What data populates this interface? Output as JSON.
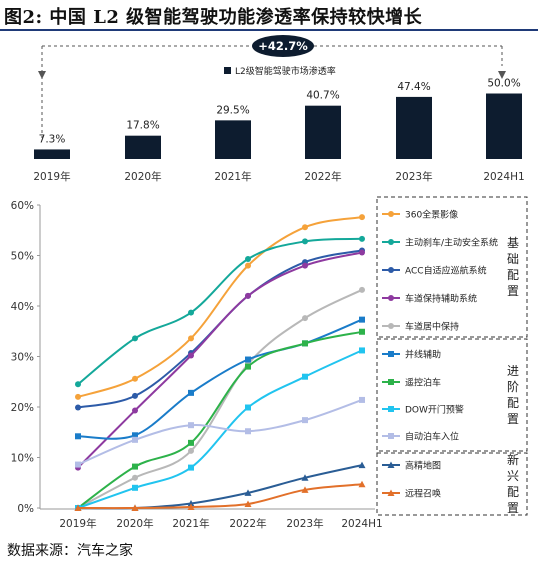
{
  "title": "图2:  中国 L2 级智能驾驶功能渗透率保持较快增长",
  "source": "数据来源：汽车之家",
  "chart_data": [
    {
      "type": "bar",
      "categories": [
        "2019年",
        "2020年",
        "2021年",
        "2022年",
        "2023年",
        "2024H1"
      ],
      "series": [
        {
          "name": "L2级智能驾驶市场渗透率",
          "values": [
            7.3,
            17.8,
            29.5,
            40.7,
            47.4,
            50.0
          ]
        }
      ],
      "value_labels": [
        "7.3%",
        "17.8%",
        "29.5%",
        "40.7%",
        "47.4%",
        "50.0%"
      ],
      "annotation": "+42.7%",
      "colors": {
        "bar": "#0d1c2f",
        "badge": "#0d1c2f",
        "badge_text": "#ffffff"
      }
    },
    {
      "type": "line",
      "categories": [
        "2019年",
        "2020年",
        "2021年",
        "2022年",
        "2023年",
        "2024H1"
      ],
      "y_ticks": [
        "0%",
        "10%",
        "20%",
        "30%",
        "40%",
        "50%",
        "60%"
      ],
      "ylim": [
        0,
        60
      ],
      "series": [
        {
          "name": "360全景影像",
          "color": "#f5a23a",
          "values": [
            22.0,
            25.6,
            33.6,
            48.0,
            55.6,
            57.6
          ]
        },
        {
          "name": "主动刹车/主动安全系统",
          "color": "#14a89a",
          "values": [
            24.5,
            33.6,
            38.7,
            49.3,
            52.8,
            53.3
          ]
        },
        {
          "name": "ACC自适应巡航系统",
          "color": "#2d5ba8",
          "values": [
            19.9,
            22.2,
            30.7,
            42.0,
            48.7,
            51.0
          ]
        },
        {
          "name": "车道保持辅助系统",
          "color": "#8e3aa0",
          "values": [
            8.0,
            19.3,
            30.2,
            42.0,
            48.0,
            50.6
          ]
        },
        {
          "name": "车道居中保持",
          "color": "#b8b8b8",
          "values": [
            0.0,
            6.0,
            11.3,
            28.5,
            37.6,
            43.2
          ]
        },
        {
          "name": "并线辅助",
          "color": "#1a7cc9",
          "values": [
            14.2,
            14.4,
            22.8,
            29.4,
            32.6,
            37.3
          ]
        },
        {
          "name": "遥控泊车",
          "color": "#2db24a",
          "values": [
            0.0,
            8.2,
            12.9,
            28.0,
            32.6,
            34.9
          ]
        },
        {
          "name": "DOW开门预警",
          "color": "#21c4ef",
          "values": [
            0.0,
            4.0,
            8.0,
            19.9,
            26.0,
            31.2
          ]
        },
        {
          "name": "自动泊车入位",
          "color": "#b3bde6",
          "values": [
            8.6,
            13.5,
            16.4,
            15.2,
            17.4,
            21.4
          ]
        },
        {
          "name": "高精地图",
          "color": "#2a5d95",
          "values": [
            0.0,
            0.0,
            0.9,
            3.0,
            6.0,
            8.5
          ]
        },
        {
          "name": "远程召唤",
          "color": "#e2702a",
          "values": [
            0.0,
            0.0,
            0.2,
            0.8,
            3.6,
            4.7
          ]
        }
      ],
      "groups": [
        {
          "label": "基础配置",
          "text": "基\n础\n配\n置",
          "members": [
            0,
            1,
            2,
            3,
            4
          ]
        },
        {
          "label": "进阶配置",
          "text": "进\n阶\n配\n置",
          "members": [
            5,
            6,
            7,
            8
          ]
        },
        {
          "label": "新兴配置",
          "text": "新\n兴\n配\n置",
          "members": [
            9,
            10
          ]
        }
      ]
    }
  ]
}
